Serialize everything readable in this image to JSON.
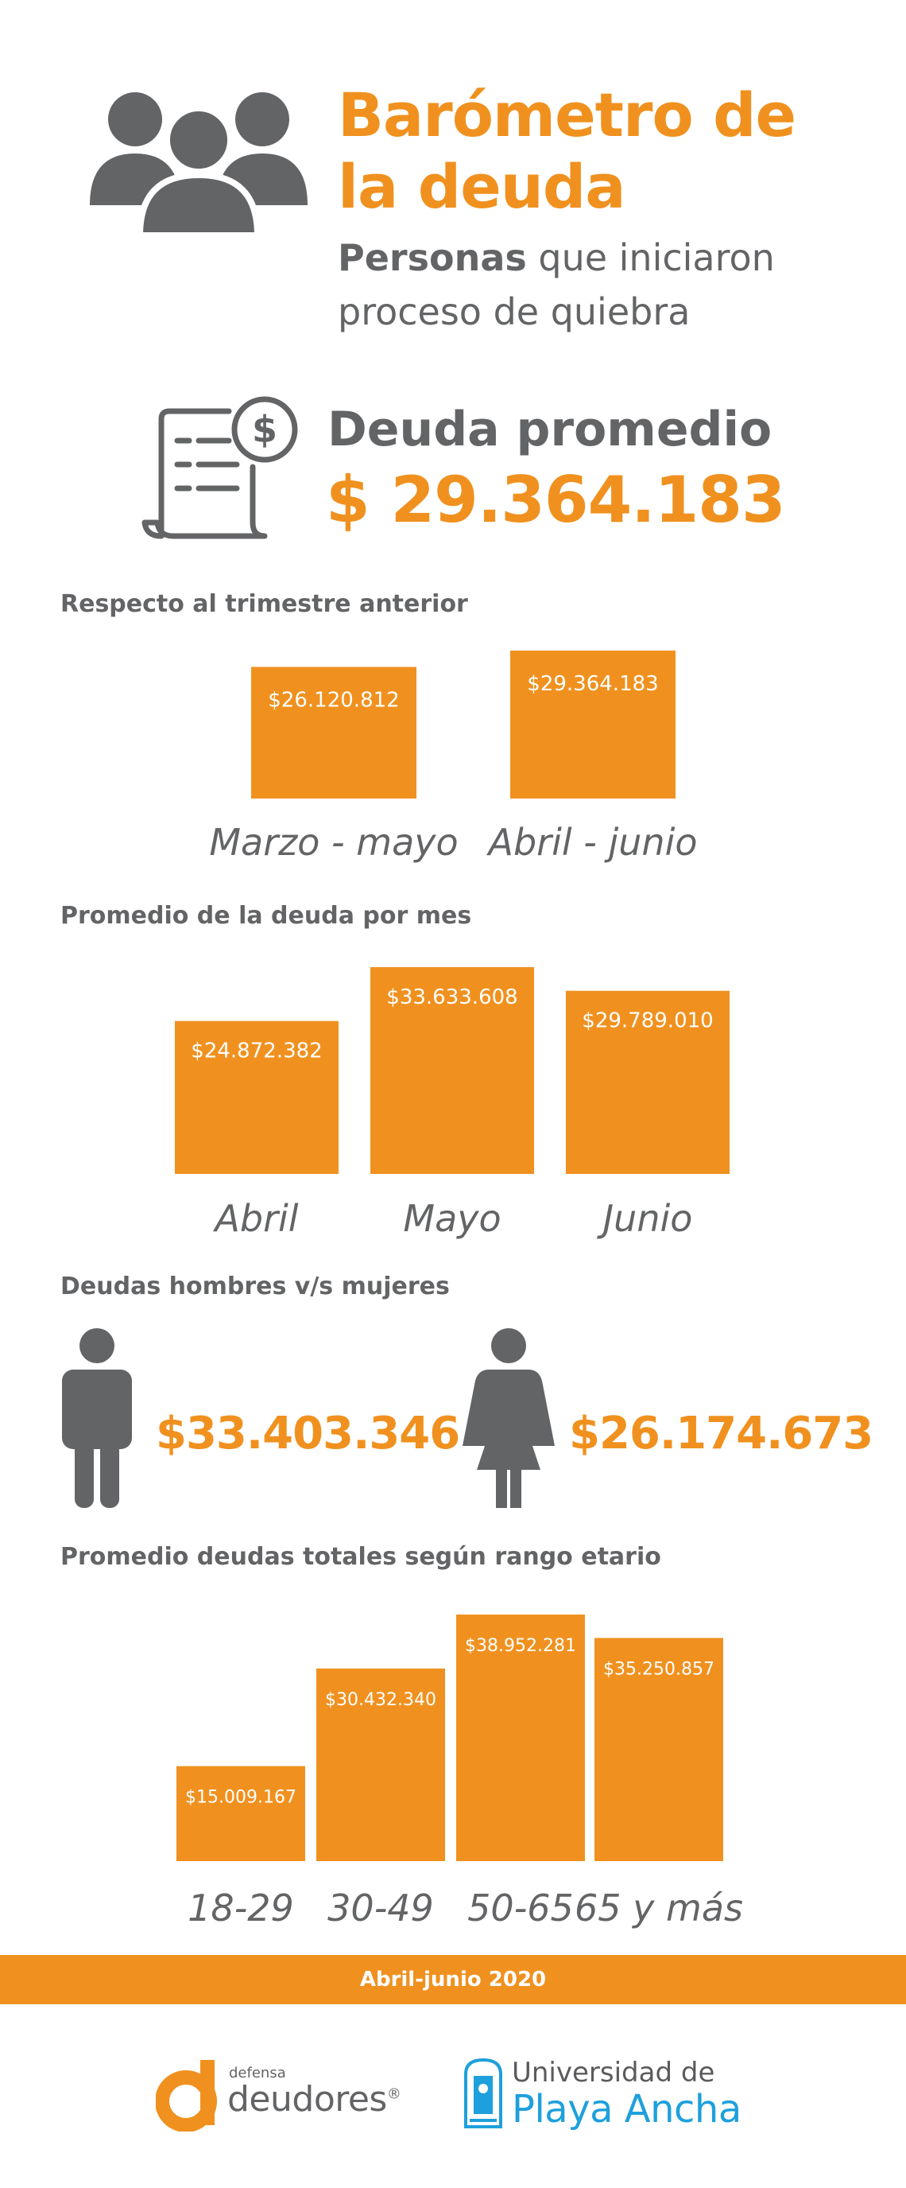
{
  "header": {
    "title_line1": "Barómetro de",
    "title_line2": "la deuda",
    "subtitle_bold": "Personas",
    "subtitle_rest": " que iniciaron",
    "subtitle_line2": "proceso de quiebra",
    "icon": "people-group-icon"
  },
  "average": {
    "label": "Deuda promedio",
    "value": "$ 29.364.183",
    "icon": "invoice-dollar-icon"
  },
  "gender": {
    "title": "Deudas hombres v/s mujeres",
    "men_value": "$33.403.346",
    "women_value": "$26.174.673",
    "men_icon": "man-icon",
    "women_icon": "woman-icon"
  },
  "footer": {
    "period": "Abril-junio 2020",
    "logo1_small": "defensa",
    "logo1_main": "deudores",
    "logo1_mark": "®",
    "logo2_line1": "Universidad de",
    "logo2_line2": "Playa Ancha"
  },
  "colors": {
    "accent": "#f0911f",
    "text": "#636466",
    "logo_blue": "#1ea0dc"
  },
  "chart_data": [
    {
      "type": "bar",
      "title": "Respecto al trimestre anterior",
      "categories": [
        "Marzo - mayo",
        "Abril - junio"
      ],
      "values": [
        26120812,
        29364183
      ],
      "labels": [
        "$26.120.812",
        "$29.364.183"
      ]
    },
    {
      "type": "bar",
      "title": "Promedio de la deuda por mes",
      "categories": [
        "Abril",
        "Mayo",
        "Junio"
      ],
      "values": [
        24872382,
        33633608,
        29789010
      ],
      "labels": [
        "$24.872.382",
        "$33.633.608",
        "$29.789.010"
      ]
    },
    {
      "type": "bar",
      "title": "Promedio deudas totales según rango etario",
      "categories": [
        "18-29",
        "30-49",
        "50-65",
        "65 y más"
      ],
      "values": [
        15009167,
        30432340,
        38952281,
        35250857
      ],
      "labels": [
        "$15.009.167",
        "$30.432.340",
        "$38.952.281",
        "$35.250.857"
      ]
    }
  ]
}
